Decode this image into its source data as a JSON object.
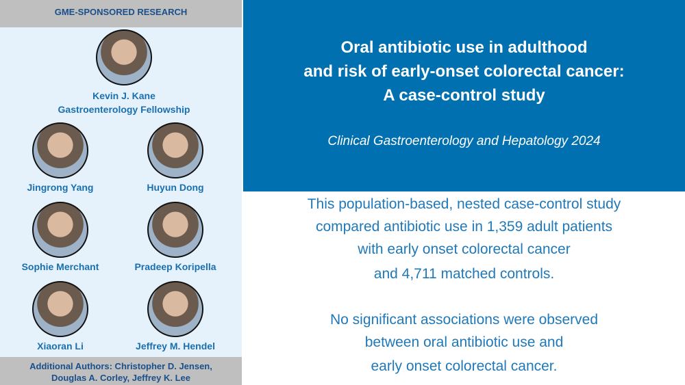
{
  "header": {
    "label": "GME-SPONSORED RESEARCH"
  },
  "featured": {
    "name": "Kevin J. Kane",
    "role": "Gastroenterology Fellowship"
  },
  "people": [
    "Jingrong Yang",
    "Huyun Dong",
    "Sophie Merchant",
    "Pradeep Koripella",
    "Xiaoran Li",
    "Jeffrey M. Hendel"
  ],
  "footer": {
    "lines": [
      "Additional Authors: Christopher D. Jensen,",
      "Douglas A. Corley, Jeffrey K. Lee"
    ]
  },
  "article": {
    "title_lines": [
      "Oral antibiotic use in adulthood",
      "and risk of early-onset colorectal cancer:",
      "A case-control study"
    ],
    "journal": "Clinical Gastroenterology and Hepatology 2024"
  },
  "summary": {
    "paragraphs": [
      [
        "This population-based, nested case-control study",
        "compared antibiotic use in 1,359 adult patients",
        "with early onset colorectal cancer",
        "and 4,711 matched controls."
      ],
      [
        "No significant associations were observed",
        "between oral antibiotic use and",
        "early onset colorectal cancer."
      ]
    ]
  }
}
